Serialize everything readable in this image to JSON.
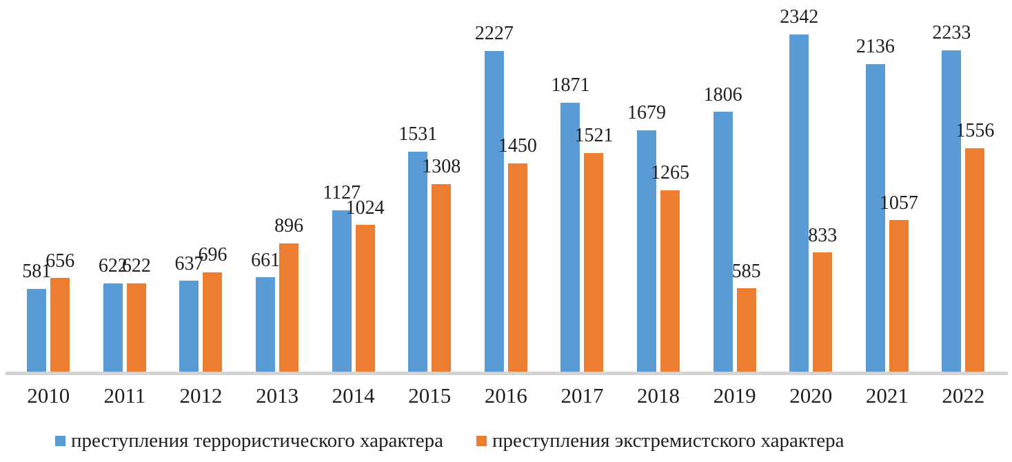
{
  "chart_data": {
    "type": "bar",
    "categories": [
      "2010",
      "2011",
      "2012",
      "2013",
      "2014",
      "2015",
      "2016",
      "2017",
      "2018",
      "2019",
      "2020",
      "2021",
      "2022"
    ],
    "series": [
      {
        "name": "преступления террористического характера",
        "key": "terrorist-crimes",
        "color": "#5B9BD5",
        "values": [
          581,
          622,
          637,
          661,
          1127,
          1531,
          2227,
          1871,
          1679,
          1806,
          2342,
          2136,
          2233
        ]
      },
      {
        "name": "преступления экстремистского характера",
        "key": "extremist-crimes",
        "color": "#ED7D31",
        "values": [
          656,
          622,
          696,
          896,
          1024,
          1308,
          1450,
          1521,
          1265,
          585,
          833,
          1057,
          1556
        ]
      }
    ],
    "title": "",
    "xlabel": "",
    "ylabel": "",
    "ylim": [
      0,
      2580
    ],
    "grid": false,
    "data_labels": true,
    "legend_position": "bottom",
    "axis_line_color": "#D3D3D3",
    "text_color": "#1f1f1f"
  }
}
